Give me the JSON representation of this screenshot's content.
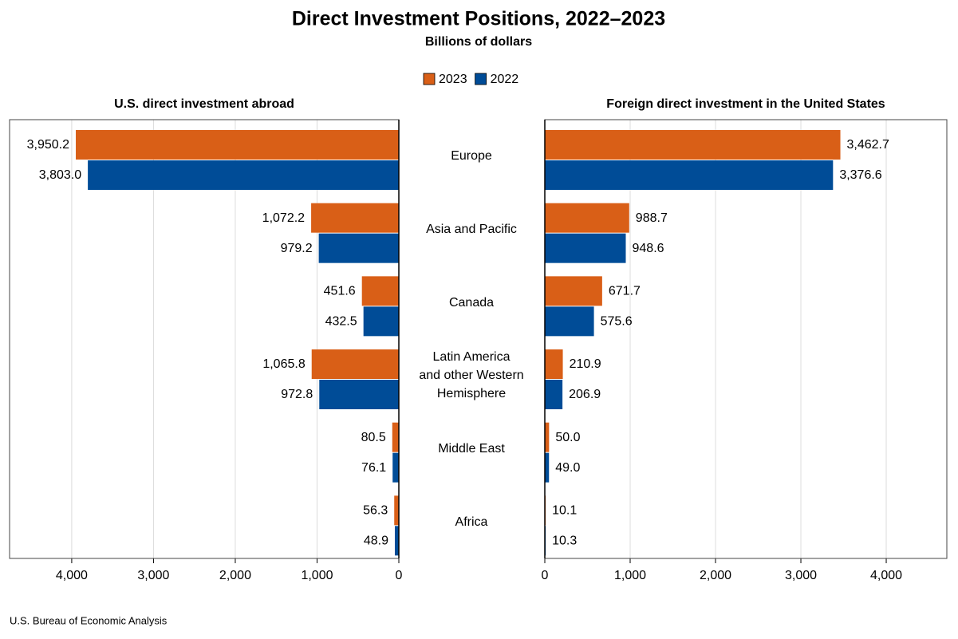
{
  "title": "Direct Investment Positions, 2022–2023",
  "subtitle": "Billions of dollars",
  "source": "U.S. Bureau of Economic Analysis",
  "chart_data": {
    "type": "bar",
    "orientation": "horizontal",
    "categories": [
      "Europe",
      "Asia and Pacific",
      "Canada",
      "Latin America\nand other Western\nHemisphere",
      "Middle East",
      "Africa"
    ],
    "legend": [
      {
        "name": "2023",
        "color": "#d95f17"
      },
      {
        "name": "2022",
        "color": "#004c97"
      }
    ],
    "grid": true,
    "panels": [
      {
        "title": "U.S. direct investment abroad",
        "xlim": [
          4760,
          0
        ],
        "xticks": [
          {
            "value": 4000,
            "label": "4,000"
          },
          {
            "value": 3000,
            "label": "3,000"
          },
          {
            "value": 2000,
            "label": "2,000"
          },
          {
            "value": 1000,
            "label": "1,000"
          },
          0
        ],
        "series": [
          {
            "values": [
              3950.2,
              1072.2,
              451.6,
              1065.8,
              80.5,
              56.3
            ],
            "value_labels": [
              "3,950.2",
              "1,072.2",
              "451.6",
              "1,065.8",
              "80.5",
              "56.3"
            ]
          },
          {
            "values": [
              3803.0,
              979.2,
              432.5,
              972.8,
              76.1,
              48.9
            ],
            "value_labels": [
              "3,803.0",
              "979.2",
              "432.5",
              "972.8",
              "76.1",
              "48.9"
            ]
          }
        ]
      },
      {
        "title": "Foreign direct investment in the United States",
        "xlim": [
          0,
          4710
        ],
        "xticks": [
          0,
          {
            "value": 1000,
            "label": "1,000"
          },
          {
            "value": 2000,
            "label": "2,000"
          },
          {
            "value": 3000,
            "label": "3,000"
          },
          {
            "value": 4000,
            "label": "4,000"
          }
        ],
        "series": [
          {
            "values": [
              3462.7,
              988.7,
              671.7,
              210.9,
              50.0,
              10.1
            ],
            "value_labels": [
              "3,462.7",
              "988.7",
              "671.7",
              "210.9",
              "50.0",
              "10.1"
            ]
          },
          {
            "values": [
              3376.6,
              948.6,
              575.6,
              206.9,
              49.0,
              10.3
            ],
            "value_labels": [
              "3,376.6",
              "948.6",
              "575.6",
              "206.9",
              "49.0",
              "10.3"
            ]
          }
        ]
      }
    ]
  }
}
